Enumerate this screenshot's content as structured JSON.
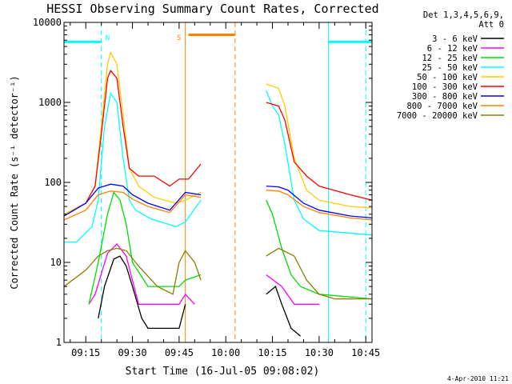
{
  "chart_data": {
    "type": "line",
    "title": "HESSI Observing Summary Count Rates, Corrected",
    "xlabel": "Start Time (16-Jul-05 09:08:02)",
    "ylabel": "Corrected Count Rate (s⁻¹ detector⁻¹)",
    "ylog": true,
    "ylim": [
      1,
      10000
    ],
    "xlim": [
      "09:08",
      "10:47"
    ],
    "x_ticks": [
      "09:15",
      "09:30",
      "09:45",
      "10:00",
      "10:15",
      "10:30",
      "10:45"
    ],
    "y_ticks": [
      "1",
      "10",
      "100",
      "1000",
      "10000"
    ],
    "legend_header": [
      "Det 1,3,4,5,6,9,",
      "Att 0"
    ],
    "legend_placement": "right",
    "footer_date": "4-Apr-2010 11:21",
    "annotations": [
      {
        "label": "N",
        "color": "#00ffff"
      },
      {
        "label": "S",
        "color": "#ff8000"
      }
    ],
    "status_bars": [
      {
        "color": "#00ffff",
        "y": 5700,
        "segments": [
          [
            "09:08",
            "09:20"
          ],
          [
            "10:33",
            "10:47"
          ]
        ]
      },
      {
        "color": "#ff8000",
        "y": 7000,
        "segments": [
          [
            "09:48",
            "10:03"
          ]
        ]
      }
    ],
    "vertical_markers": [
      {
        "time": "09:08",
        "color": "#00ffff",
        "style": "solid"
      },
      {
        "time": "09:20",
        "color": "#00ffff",
        "style": "dashed"
      },
      {
        "time": "09:47",
        "color": "#ff8000",
        "style": "solid"
      },
      {
        "time": "10:03",
        "color": "#ff8000",
        "style": "dashed"
      },
      {
        "time": "10:33",
        "color": "#00ffff",
        "style": "solid"
      },
      {
        "time": "10:45",
        "color": "#00ffff",
        "style": "dashed"
      }
    ],
    "segments": [
      [
        "09:08",
        "09:52"
      ],
      [
        "10:13",
        "10:47"
      ]
    ],
    "series": [
      {
        "name": "3 - 6 keV",
        "color": "#000000",
        "x": [
          "09:08",
          "09:17",
          "09:19",
          "09:21",
          "09:24",
          "09:26",
          "09:28",
          "09:30",
          "09:33",
          "09:35",
          "09:45",
          "09:47",
          "09:52",
          "10:13",
          "10:16",
          "10:18",
          "10:21",
          "10:24",
          "10:27",
          "10:47"
        ],
        "y": [
          null,
          null,
          2,
          5,
          11,
          12,
          9,
          5,
          2,
          1.5,
          1.5,
          3,
          null,
          4,
          5,
          3,
          1.5,
          1.2,
          null,
          null
        ]
      },
      {
        "name": "6 - 12 keV",
        "color": "#ff00ff",
        "x": [
          "09:08",
          "09:16",
          "09:18",
          "09:22",
          "09:25",
          "09:28",
          "09:32",
          "09:45",
          "09:47",
          "09:50",
          "09:52",
          "10:13",
          "10:18",
          "10:22",
          "10:30",
          "10:32",
          "10:47"
        ],
        "y": [
          null,
          3,
          4,
          13,
          17,
          12,
          3,
          3,
          4,
          3,
          null,
          7,
          5,
          3,
          3,
          null,
          null
        ]
      },
      {
        "name": "12 - 25 keV",
        "color": "#00dd00",
        "x": [
          "09:08",
          "09:16",
          "09:19",
          "09:22",
          "09:24",
          "09:26",
          "09:28",
          "09:30",
          "09:35",
          "09:45",
          "09:47",
          "09:52",
          "10:13",
          "10:15",
          "10:18",
          "10:21",
          "10:24",
          "10:30",
          "10:47"
        ],
        "y": [
          null,
          3,
          10,
          40,
          75,
          60,
          30,
          10,
          5,
          5,
          6,
          7,
          60,
          40,
          15,
          7,
          5,
          4,
          3.5
        ]
      },
      {
        "name": "25 - 50 keV",
        "color": "#00ffff",
        "x": [
          "09:08",
          "09:12",
          "09:17",
          "09:19",
          "09:21",
          "09:23",
          "09:25",
          "09:27",
          "09:29",
          "09:31",
          "09:36",
          "09:44",
          "09:47",
          "09:52",
          "10:13",
          "10:15",
          "10:17",
          "10:19",
          "10:22",
          "10:25",
          "10:30",
          "10:47"
        ],
        "y": [
          18,
          18,
          28,
          60,
          500,
          1300,
          1000,
          200,
          60,
          45,
          35,
          28,
          32,
          60,
          1400,
          900,
          700,
          300,
          60,
          35,
          25,
          22
        ]
      },
      {
        "name": "50 - 100 keV",
        "color": "#ffcc00",
        "x": [
          "09:08",
          "09:15",
          "09:18",
          "09:20",
          "09:22",
          "09:23",
          "09:25",
          "09:27",
          "09:29",
          "09:32",
          "09:37",
          "09:44",
          "09:47",
          "09:52",
          "10:13",
          "10:17",
          "10:19",
          "10:22",
          "10:26",
          "10:30",
          "10:40",
          "10:47"
        ],
        "y": [
          40,
          55,
          90,
          500,
          3000,
          4200,
          3000,
          700,
          150,
          90,
          65,
          55,
          60,
          75,
          1700,
          1500,
          900,
          200,
          80,
          60,
          50,
          48
        ]
      },
      {
        "name": "100 - 300 keV",
        "color": "#ff0000",
        "x": [
          "09:08",
          "09:15",
          "09:18",
          "09:20",
          "09:22",
          "09:23",
          "09:25",
          "09:27",
          "09:29",
          "09:32",
          "09:37",
          "09:42",
          "09:45",
          "09:48",
          "09:52",
          "10:13",
          "10:17",
          "10:19",
          "10:22",
          "10:26",
          "10:30",
          "10:40",
          "10:47"
        ],
        "y": [
          38,
          55,
          90,
          400,
          2000,
          2500,
          2000,
          500,
          150,
          120,
          120,
          90,
          110,
          110,
          170,
          1000,
          900,
          600,
          180,
          120,
          90,
          70,
          60
        ]
      },
      {
        "name": "300 - 800 keV",
        "color": "#0000ff",
        "x": [
          "09:08",
          "09:15",
          "09:19",
          "09:23",
          "09:27",
          "09:30",
          "09:35",
          "09:42",
          "09:47",
          "09:52",
          "10:13",
          "10:17",
          "10:20",
          "10:25",
          "10:30",
          "10:40",
          "10:47"
        ],
        "y": [
          38,
          55,
          85,
          95,
          90,
          70,
          55,
          45,
          75,
          70,
          90,
          88,
          80,
          55,
          45,
          38,
          36
        ]
      },
      {
        "name": "800 - 7000 keV",
        "color": "#ff8000",
        "x": [
          "09:08",
          "09:15",
          "09:19",
          "09:23",
          "09:27",
          "09:30",
          "09:35",
          "09:42",
          "09:47",
          "09:52",
          "10:13",
          "10:17",
          "10:20",
          "10:25",
          "10:30",
          "10:40",
          "10:47"
        ],
        "y": [
          34,
          45,
          70,
          78,
          75,
          62,
          50,
          42,
          70,
          65,
          80,
          78,
          70,
          50,
          42,
          36,
          34
        ]
      },
      {
        "name": "7000 - 20000 keV",
        "color": "#8b7d00",
        "x": [
          "09:08",
          "09:15",
          "09:19",
          "09:22",
          "09:25",
          "09:28",
          "09:32",
          "09:38",
          "09:43",
          "09:45",
          "09:47",
          "09:50",
          "09:52",
          "10:13",
          "10:17",
          "10:22",
          "10:26",
          "10:30",
          "10:35",
          "10:47"
        ],
        "y": [
          5,
          8,
          12,
          14,
          15,
          14,
          9,
          5,
          4,
          10,
          14,
          10,
          6,
          12,
          15,
          12,
          6,
          4,
          3.5,
          3.5
        ]
      }
    ]
  }
}
